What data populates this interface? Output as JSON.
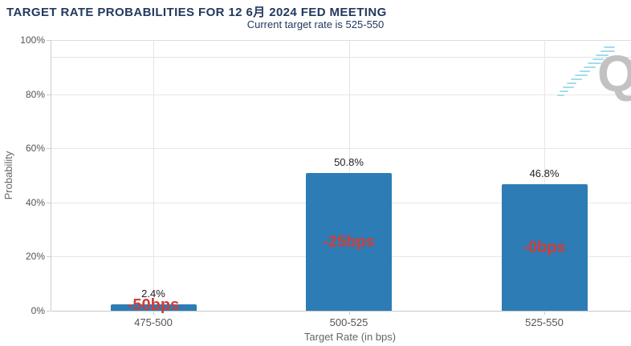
{
  "watermark": {
    "letter": "Q"
  },
  "chart_data": {
    "type": "bar",
    "title": "TARGET RATE PROBABILITIES FOR 12 6月 2024 FED MEETING",
    "subtitle": "Current target rate is 525-550",
    "categories": [
      "475-500",
      "500-525",
      "525-550"
    ],
    "values": [
      2.4,
      50.8,
      46.8
    ],
    "value_labels": [
      "2.4%",
      "50.8%",
      "46.8%"
    ],
    "bar_annotations": [
      "-50bps",
      "-25bps",
      "-0bps"
    ],
    "xlabel": "Target Rate (in bps)",
    "ylabel": "Probability",
    "ylim": [
      0,
      100
    ],
    "ytick_labels": [
      "0%",
      "20%",
      "40%",
      "60%",
      "80%",
      "100%"
    ],
    "grid": true,
    "legend": false,
    "colors": {
      "bar": "#2d7cb5",
      "annotation": "#cf3e38",
      "title": "#22395e"
    }
  }
}
